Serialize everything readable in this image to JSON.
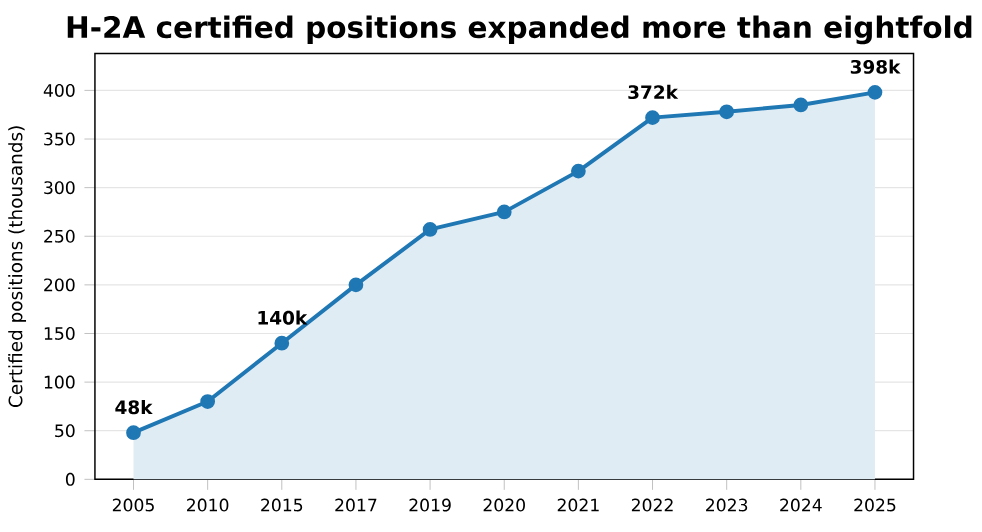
{
  "chart_data": {
    "type": "area",
    "title": "H-2A certified positions expanded more than eightfold",
    "ylabel": "Certified positions (thousands)",
    "categories": [
      "2005",
      "2010",
      "2015",
      "2017",
      "2019",
      "2020",
      "2021",
      "2022",
      "2023",
      "2024",
      "2025"
    ],
    "series": [
      {
        "color": "#1f77b4",
        "values": [
          48,
          80,
          140,
          200,
          257,
          275,
          317,
          372,
          378,
          385,
          398
        ],
        "value_labels": [
          "48k",
          null,
          "140k",
          null,
          null,
          null,
          null,
          "372k",
          null,
          null,
          "398k"
        ]
      }
    ],
    "ylim": [
      0,
      438
    ],
    "yticks": [
      0,
      50,
      100,
      150,
      200,
      250,
      300,
      350,
      400
    ],
    "grid": "y",
    "marker": "circle",
    "line_style": "solid"
  }
}
